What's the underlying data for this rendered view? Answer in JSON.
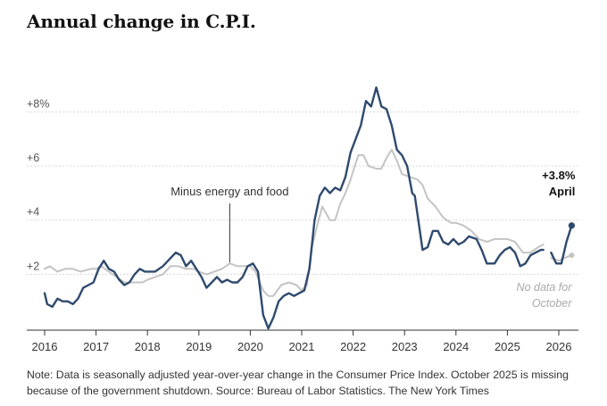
{
  "title": "Annual change in C.P.I.",
  "note": "Note: Data is seasonally adjusted year-over-year change in the Consumer Price Index. October 2025 is missing because of the government shutdown.  Source: Bureau of Labor Statistics.  The New York Times",
  "colors": {
    "core": "#2f4a6e",
    "headline": "#c4c4c4"
  },
  "chart_data": {
    "type": "line",
    "title": "Annual change in C.P.I.",
    "xlabel": "",
    "ylabel": "",
    "xlim": [
      2016,
      2026.4
    ],
    "ylim": [
      0,
      10
    ],
    "grid": true,
    "y_ticks": [
      {
        "value": 2,
        "label": "+2"
      },
      {
        "value": 4,
        "label": "+4"
      },
      {
        "value": 6,
        "label": "+6"
      },
      {
        "value": 8,
        "label": "+8%"
      }
    ],
    "x_ticks": [
      {
        "value": 2016,
        "label": "2016"
      },
      {
        "value": 2017,
        "label": "2017"
      },
      {
        "value": 2018,
        "label": "2018"
      },
      {
        "value": 2019,
        "label": "2019"
      },
      {
        "value": 2020,
        "label": "2020"
      },
      {
        "value": 2021,
        "label": "2021"
      },
      {
        "value": 2022,
        "label": "2022"
      },
      {
        "value": 2023,
        "label": "2023"
      },
      {
        "value": 2024,
        "label": "2024"
      },
      {
        "value": 2025,
        "label": "2025"
      },
      {
        "value": 2026,
        "label": "2026"
      }
    ],
    "series": [
      {
        "key": "headline",
        "segments": [
          [
            [
              2016.0,
              2.2
            ],
            [
              2016.1,
              2.3
            ],
            [
              2016.25,
              2.1
            ],
            [
              2016.4,
              2.2
            ],
            [
              2016.55,
              2.2
            ],
            [
              2016.7,
              2.1
            ],
            [
              2016.9,
              2.2
            ],
            [
              2017.0,
              2.2
            ],
            [
              2017.1,
              2.3
            ],
            [
              2017.25,
              2.1
            ],
            [
              2017.4,
              1.9
            ],
            [
              2017.55,
              1.7
            ],
            [
              2017.7,
              1.7
            ],
            [
              2017.9,
              1.7
            ],
            [
              2018.0,
              1.8
            ],
            [
              2018.15,
              1.9
            ],
            [
              2018.3,
              2.0
            ],
            [
              2018.45,
              2.3
            ],
            [
              2018.6,
              2.3
            ],
            [
              2018.75,
              2.2
            ],
            [
              2018.9,
              2.2
            ],
            [
              2019.0,
              2.1
            ],
            [
              2019.15,
              2.0
            ],
            [
              2019.3,
              2.1
            ],
            [
              2019.45,
              2.2
            ],
            [
              2019.6,
              2.4
            ],
            [
              2019.75,
              2.3
            ],
            [
              2019.9,
              2.3
            ],
            [
              2020.0,
              2.3
            ],
            [
              2020.1,
              2.1
            ],
            [
              2020.25,
              1.4
            ],
            [
              2020.35,
              1.2
            ],
            [
              2020.45,
              1.2
            ],
            [
              2020.6,
              1.6
            ],
            [
              2020.75,
              1.7
            ],
            [
              2020.9,
              1.6
            ],
            [
              2021.0,
              1.4
            ],
            [
              2021.1,
              1.6
            ],
            [
              2021.2,
              3.0
            ],
            [
              2021.3,
              3.8
            ],
            [
              2021.4,
              4.5
            ],
            [
              2021.55,
              4.0
            ],
            [
              2021.65,
              4.0
            ],
            [
              2021.75,
              4.6
            ],
            [
              2021.85,
              5.0
            ],
            [
              2021.95,
              5.5
            ],
            [
              2022.1,
              6.4
            ],
            [
              2022.2,
              6.4
            ],
            [
              2022.3,
              6.0
            ],
            [
              2022.45,
              5.9
            ],
            [
              2022.55,
              5.9
            ],
            [
              2022.65,
              6.3
            ],
            [
              2022.75,
              6.6
            ],
            [
              2022.85,
              6.2
            ],
            [
              2022.95,
              5.7
            ],
            [
              2023.1,
              5.6
            ],
            [
              2023.25,
              5.5
            ],
            [
              2023.35,
              5.3
            ],
            [
              2023.45,
              4.8
            ],
            [
              2023.6,
              4.5
            ],
            [
              2023.75,
              4.1
            ],
            [
              2023.9,
              3.9
            ],
            [
              2024.0,
              3.9
            ],
            [
              2024.15,
              3.8
            ],
            [
              2024.3,
              3.6
            ],
            [
              2024.45,
              3.3
            ],
            [
              2024.6,
              3.2
            ],
            [
              2024.75,
              3.3
            ],
            [
              2024.9,
              3.3
            ],
            [
              2025.0,
              3.3
            ],
            [
              2025.15,
              3.2
            ],
            [
              2025.3,
              2.8
            ],
            [
              2025.45,
              2.8
            ],
            [
              2025.6,
              3.0
            ],
            [
              2025.7,
              3.1
            ]
          ],
          [
            [
              2025.85,
              2.6
            ],
            [
              2026.0,
              2.5
            ],
            [
              2026.1,
              2.6
            ],
            [
              2026.25,
              2.7
            ]
          ]
        ]
      },
      {
        "key": "core",
        "label": "Minus energy and food",
        "segments": [
          [
            [
              2016.0,
              1.3
            ],
            [
              2016.05,
              0.9
            ],
            [
              2016.15,
              0.8
            ],
            [
              2016.25,
              1.1
            ],
            [
              2016.35,
              1.0
            ],
            [
              2016.45,
              1.0
            ],
            [
              2016.55,
              0.9
            ],
            [
              2016.65,
              1.1
            ],
            [
              2016.75,
              1.5
            ],
            [
              2016.85,
              1.6
            ],
            [
              2016.95,
              1.7
            ],
            [
              2017.05,
              2.2
            ],
            [
              2017.15,
              2.5
            ],
            [
              2017.25,
              2.2
            ],
            [
              2017.35,
              2.1
            ],
            [
              2017.45,
              1.8
            ],
            [
              2017.55,
              1.6
            ],
            [
              2017.65,
              1.7
            ],
            [
              2017.75,
              2.0
            ],
            [
              2017.85,
              2.2
            ],
            [
              2017.95,
              2.1
            ],
            [
              2018.05,
              2.1
            ],
            [
              2018.15,
              2.1
            ],
            [
              2018.3,
              2.3
            ],
            [
              2018.45,
              2.6
            ],
            [
              2018.55,
              2.8
            ],
            [
              2018.65,
              2.7
            ],
            [
              2018.75,
              2.3
            ],
            [
              2018.85,
              2.5
            ],
            [
              2018.95,
              2.2
            ],
            [
              2019.05,
              1.9
            ],
            [
              2019.15,
              1.5
            ],
            [
              2019.25,
              1.7
            ],
            [
              2019.35,
              1.9
            ],
            [
              2019.45,
              1.7
            ],
            [
              2019.55,
              1.8
            ],
            [
              2019.65,
              1.7
            ],
            [
              2019.75,
              1.7
            ],
            [
              2019.85,
              1.9
            ],
            [
              2019.95,
              2.3
            ],
            [
              2020.05,
              2.4
            ],
            [
              2020.15,
              2.1
            ],
            [
              2020.25,
              0.5
            ],
            [
              2020.35,
              0.0
            ],
            [
              2020.45,
              0.4
            ],
            [
              2020.55,
              1.0
            ],
            [
              2020.65,
              1.2
            ],
            [
              2020.75,
              1.3
            ],
            [
              2020.85,
              1.2
            ],
            [
              2020.95,
              1.3
            ],
            [
              2021.05,
              1.4
            ],
            [
              2021.15,
              2.2
            ],
            [
              2021.25,
              4.0
            ],
            [
              2021.35,
              4.9
            ],
            [
              2021.45,
              5.2
            ],
            [
              2021.55,
              5.0
            ],
            [
              2021.65,
              5.2
            ],
            [
              2021.75,
              5.1
            ],
            [
              2021.85,
              5.6
            ],
            [
              2021.95,
              6.5
            ],
            [
              2022.05,
              7.0
            ],
            [
              2022.15,
              7.5
            ],
            [
              2022.25,
              8.4
            ],
            [
              2022.35,
              8.2
            ],
            [
              2022.45,
              8.9
            ],
            [
              2022.55,
              8.2
            ],
            [
              2022.65,
              8.1
            ],
            [
              2022.75,
              7.5
            ],
            [
              2022.85,
              6.6
            ],
            [
              2022.95,
              6.4
            ],
            [
              2023.05,
              6.0
            ],
            [
              2023.15,
              5.0
            ],
            [
              2023.2,
              4.9
            ],
            [
              2023.35,
              2.9
            ],
            [
              2023.45,
              3.0
            ],
            [
              2023.55,
              3.6
            ],
            [
              2023.65,
              3.6
            ],
            [
              2023.75,
              3.2
            ],
            [
              2023.85,
              3.1
            ],
            [
              2023.95,
              3.3
            ],
            [
              2024.05,
              3.1
            ],
            [
              2024.15,
              3.2
            ],
            [
              2024.25,
              3.4
            ],
            [
              2024.4,
              3.3
            ],
            [
              2024.5,
              2.9
            ],
            [
              2024.6,
              2.4
            ],
            [
              2024.75,
              2.4
            ],
            [
              2024.85,
              2.7
            ],
            [
              2024.95,
              2.9
            ],
            [
              2025.05,
              3.0
            ],
            [
              2025.15,
              2.8
            ],
            [
              2025.25,
              2.3
            ],
            [
              2025.35,
              2.4
            ],
            [
              2025.45,
              2.7
            ],
            [
              2025.55,
              2.8
            ],
            [
              2025.65,
              2.9
            ],
            [
              2025.7,
              2.9
            ]
          ],
          [
            [
              2025.85,
              2.8
            ],
            [
              2025.95,
              2.4
            ],
            [
              2026.05,
              2.4
            ],
            [
              2026.15,
              3.2
            ],
            [
              2026.25,
              3.8
            ]
          ]
        ]
      }
    ],
    "annotations": {
      "series_label": {
        "text": "Minus energy and food",
        "x": 2019.6
      },
      "endpoint": {
        "x": 2026.25,
        "y": 3.8,
        "value_label": "+3.8%",
        "month_label": "April"
      },
      "gap_note": [
        "No data for",
        "October"
      ]
    }
  }
}
